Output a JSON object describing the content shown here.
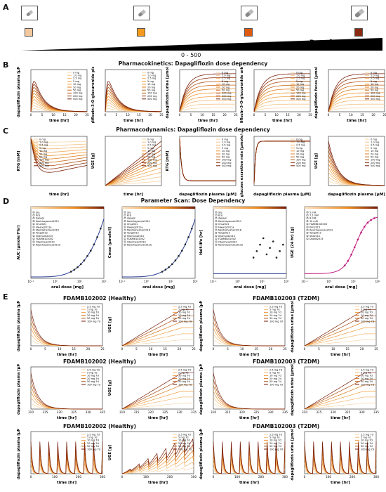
{
  "panel_labels": [
    "A",
    "B",
    "C",
    "D",
    "E"
  ],
  "section_titles": {
    "pk": "Pharmacokinetics: Dapagliflozin dose dependency",
    "pd": "Pharmacodynamics: Dapagliflozin dose dependency",
    "scan": "Parameter Scan: Dose Dependency"
  },
  "dose": {
    "range": "0 - 500",
    "label": "Dose [mg]",
    "swatch_colors": [
      "#f4c9a0",
      "#f59a1c",
      "#e05a0e",
      "#8a2a10"
    ]
  },
  "legend_doses": [
    "0 mg",
    "1.0 mg",
    "2.5 mg",
    "5 mg",
    "10 mg",
    "20 mg",
    "50 mg",
    "100 mg",
    "200 mg",
    "500 mg"
  ],
  "time_label": "time [hr]",
  "oral_dose_label": "oral dose [mg]",
  "pk_plots": [
    {
      "ylabel": "dapagliflozin plasma [μM]"
    },
    {
      "ylabel": "dapagliflozin-3-O-glucuronide plasma [μM]"
    },
    {
      "ylabel": "dapagliflozin urine [μmole]"
    },
    {
      "ylabel": "dapagliflozin-3-O-glucuronide urine [μmole]"
    },
    {
      "ylabel": "dapagliflozin feces [μmole]"
    }
  ],
  "pd_plots": [
    {
      "ylabel": "RTG [mM]",
      "xlabel": "time [hr]"
    },
    {
      "ylabel": "UGE [g]",
      "xlabel": "time [hr]"
    },
    {
      "ylabel": "RTG [mM]",
      "xlabel": "dapagliflozin plasma [μM]"
    },
    {
      "ylabel": "glucose excretion rate [μmole/min]",
      "xlabel": "dapagliflozin plasma [μM]"
    },
    {
      "ylabel": "UGE [g]",
      "xlabel": "dapagliflozin plasma [μM]"
    }
  ],
  "scan_plots": [
    {
      "ylabel": "AUC [μmole/l*hr]"
    },
    {
      "ylabel": "Cmax [μmole/l]"
    },
    {
      "ylabel": "Half-life [hr]"
    },
    {
      "ylabel": "UGE (24 hr) [g]"
    }
  ],
  "scan_legend_a": [
    "Ste",
    "Kris",
    "dapagl",
    "Kasichayanula2011",
    "Chu2021",
    "Hwang2011a",
    "Mentzeheimer2016",
    "Yang2013",
    "Imamura2013",
    "FDAMB102002",
    "Obermeier2010",
    "Kasichayanula2011b"
  ],
  "scan_legend_b": [
    "5 mM",
    "7.5 mM",
    "8 mM",
    "10 mM",
    "FDAMB102003",
    "Kim2015",
    "Kasichayanula2013",
    "Yang2013",
    "Sha2015",
    "Davidi2013"
  ],
  "e_titles": [
    "FDAMB102002 (Healthy)",
    "FDAMB102003 (T2DM)"
  ],
  "e_ylabels": [
    "dapagliflozin plasma [μM]",
    "UGE [g]",
    "dapagliflozin plasma [μM]",
    "dapagliflozin urine [μmole]"
  ],
  "e_legend": [
    "2.5 mg 7d",
    "5 mg 7d",
    "10 mg 7d",
    "20 mg 7d",
    "50 mg 7d",
    "100 mg 7d"
  ],
  "ticks": {
    "time24": [
      "0",
      "5",
      "10",
      "15",
      "20",
      "25"
    ],
    "time_md": [
      "310",
      "315",
      "320",
      "325",
      "330",
      "335"
    ],
    "time_long": [
      "0",
      "100",
      "200",
      "300"
    ],
    "dose_log": [
      "10⁻¹",
      "10⁰",
      "10¹",
      "10²"
    ]
  }
}
